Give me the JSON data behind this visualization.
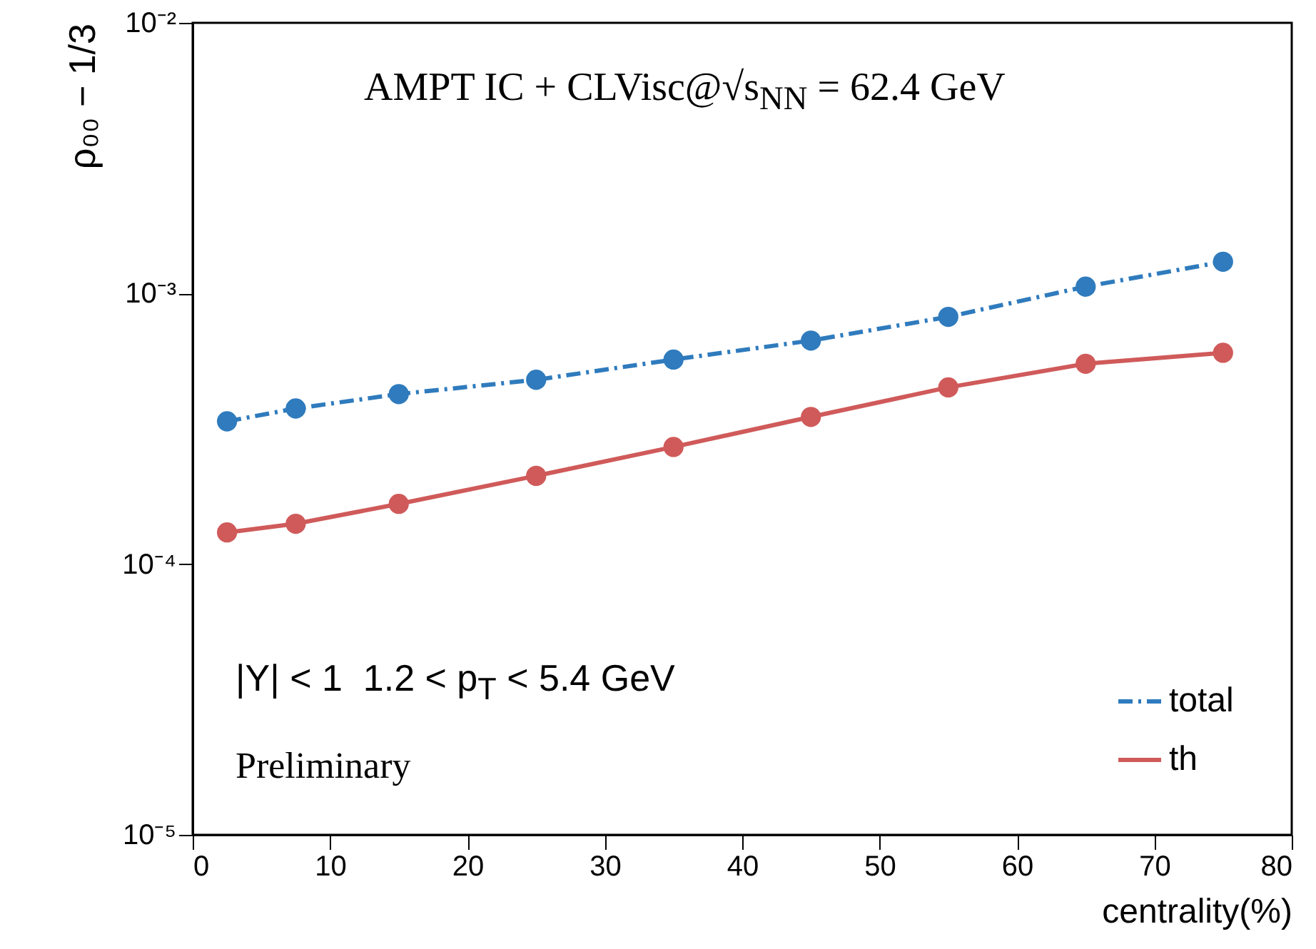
{
  "chart_data": {
    "type": "line",
    "xlabel": "centrality(%)",
    "ylabel": "ρ₀₀ − 1/3",
    "annotations": [
      "AMPT IC + CLVisc@√s$_{NN}$ = 62.4 GeV",
      "|Y| < 1  1.2 < p$_{T}$ < 5.4 GeV",
      "Preliminary"
    ],
    "x": [
      2.5,
      7.5,
      15,
      25,
      35,
      45,
      55,
      65,
      75
    ],
    "series": [
      {
        "name": "total",
        "color": "#2f7bbd",
        "line_style": "dashed",
        "values": [
          0.000337,
          0.000376,
          0.000425,
          0.00048,
          0.00057,
          0.00067,
          0.00082,
          0.00106,
          0.00131
        ]
      },
      {
        "name": "th",
        "color": "#d05a5a",
        "line_style": "solid",
        "values": [
          0.000131,
          0.000141,
          0.000167,
          0.000212,
          0.000271,
          0.00035,
          0.00045,
          0.00055,
          0.000604
        ]
      }
    ],
    "xlim": [
      0,
      80
    ],
    "xticks": [
      0,
      10,
      20,
      30,
      40,
      50,
      60,
      70,
      80
    ],
    "ylim": [
      1e-05,
      0.01
    ],
    "yticks": [
      {
        "value": 1e-05,
        "label": "10⁻⁵"
      },
      {
        "value": 0.0001,
        "label": "10⁻⁴"
      },
      {
        "value": 0.001,
        "label": "10⁻³"
      },
      {
        "value": 0.01,
        "label": "10⁻²"
      }
    ],
    "log": "y",
    "grid": false,
    "legend": "bottom right",
    "marker": "circle"
  }
}
